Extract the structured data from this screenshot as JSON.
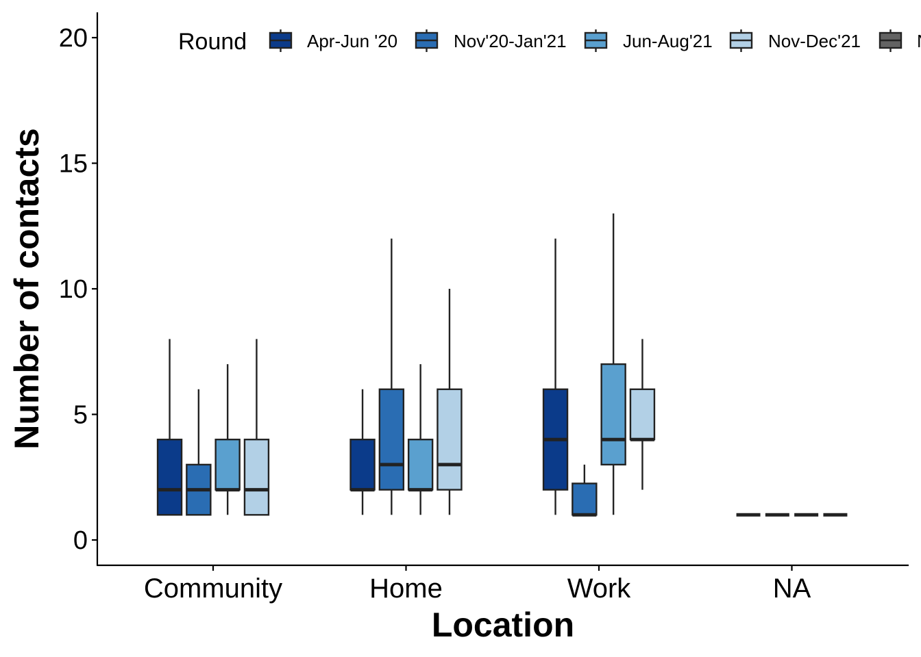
{
  "chart_data": {
    "type": "box",
    "xlabel": "Location",
    "ylabel": "Number of contacts",
    "ylim": [
      -1,
      21
    ],
    "yticks": [
      0,
      5,
      10,
      15,
      20
    ],
    "grid": false,
    "legend": {
      "title": "Round",
      "position": "top",
      "entries": [
        {
          "label": "Apr-Jun '20",
          "color": "#0b3b8a"
        },
        {
          "label": "Nov'20-Jan'21",
          "color": "#2a6db3"
        },
        {
          "label": "Jun-Aug'21",
          "color": "#5aa0cf"
        },
        {
          "label": "Nov-Dec'21",
          "color": "#b2d0e6"
        },
        {
          "label": "N",
          "color": "#636363"
        }
      ]
    },
    "categories": [
      "Community",
      "Home",
      "Work",
      "NA"
    ],
    "series": [
      {
        "name": "Apr-Jun '20",
        "color": "#0b3b8a",
        "boxes": [
          {
            "min": 1,
            "q1": 1,
            "median": 2,
            "q3": 4,
            "max": 8
          },
          {
            "min": 1,
            "q1": 2,
            "median": 2,
            "q3": 4,
            "max": 6
          },
          {
            "min": 1,
            "q1": 2,
            "median": 4,
            "q3": 6,
            "max": 12
          },
          {
            "min": 1,
            "q1": 1,
            "median": 1,
            "q3": 1,
            "max": 1
          }
        ]
      },
      {
        "name": "Nov'20-Jan'21",
        "color": "#2a6db3",
        "boxes": [
          {
            "min": 1,
            "q1": 1,
            "median": 2,
            "q3": 3,
            "max": 6
          },
          {
            "min": 1,
            "q1": 2,
            "median": 3,
            "q3": 6,
            "max": 12
          },
          {
            "min": 1,
            "q1": 1,
            "median": 1,
            "q3": 2.25,
            "max": 3
          },
          {
            "min": 1,
            "q1": 1,
            "median": 1,
            "q3": 1,
            "max": 1
          }
        ]
      },
      {
        "name": "Jun-Aug'21",
        "color": "#5aa0cf",
        "boxes": [
          {
            "min": 1,
            "q1": 2,
            "median": 2,
            "q3": 4,
            "max": 7
          },
          {
            "min": 1,
            "q1": 2,
            "median": 2,
            "q3": 4,
            "max": 7
          },
          {
            "min": 1,
            "q1": 3,
            "median": 4,
            "q3": 7,
            "max": 13
          },
          {
            "min": 1,
            "q1": 1,
            "median": 1,
            "q3": 1,
            "max": 1
          }
        ]
      },
      {
        "name": "Nov-Dec'21",
        "color": "#b2d0e6",
        "boxes": [
          {
            "min": 1,
            "q1": 1,
            "median": 2,
            "q3": 4,
            "max": 8
          },
          {
            "min": 1,
            "q1": 2,
            "median": 3,
            "q3": 6,
            "max": 10
          },
          {
            "min": 2,
            "q1": 4,
            "median": 4,
            "q3": 6,
            "max": 8
          },
          {
            "min": 1,
            "q1": 1,
            "median": 1,
            "q3": 1,
            "max": 1
          }
        ]
      }
    ]
  }
}
